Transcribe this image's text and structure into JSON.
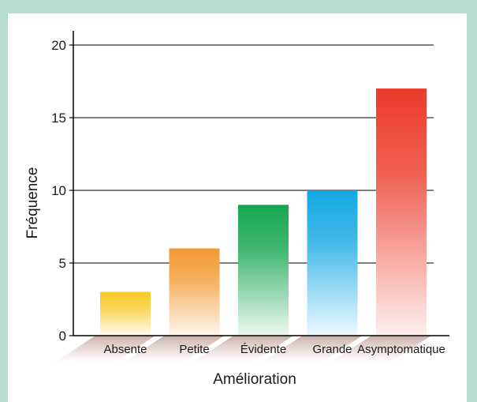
{
  "chart_data": {
    "type": "bar",
    "title": "",
    "xlabel": "Amélioration",
    "ylabel": "Fréquence",
    "ylim": [
      0,
      20
    ],
    "yticks": [
      0,
      5,
      10,
      15,
      20
    ],
    "grid": true,
    "categories": [
      "Absente",
      "Petite",
      "Évidente",
      "Grande",
      "Asymptomatique"
    ],
    "values": [
      3,
      6,
      9,
      10,
      17
    ],
    "colors": [
      "#f9c929",
      "#f39a33",
      "#15a650",
      "#12a8e2",
      "#ec3a2a"
    ]
  }
}
